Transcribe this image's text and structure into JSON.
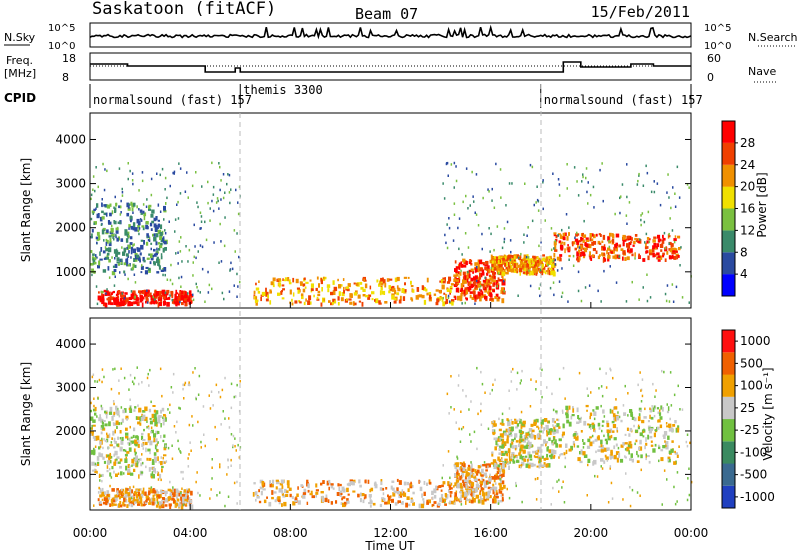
{
  "header": {
    "title": "Saskatoon (fitACF)",
    "beam": "Beam 07",
    "date": "15/Feb/2011"
  },
  "noise_panel": {
    "left_label": "N.Sky",
    "right_label": "N.Search",
    "left_ticks": [
      "10^5",
      "10^0"
    ],
    "right_ticks": [
      "10^5",
      "10^0"
    ]
  },
  "freq_panel": {
    "left_label_1": "Freq.",
    "left_label_2": "[MHz]",
    "right_label": "Nave",
    "left_ticks": [
      "18",
      "8"
    ],
    "right_ticks": [
      "60",
      "0"
    ]
  },
  "cpid": {
    "label": "CPID",
    "segments": [
      {
        "text": "normalsound (fast) 157",
        "start": 0,
        "end": 6
      },
      {
        "text": "themis 3300",
        "start": 6,
        "end": 18
      },
      {
        "text": "normalsound (fast) 157",
        "start": 18,
        "end": 24
      }
    ]
  },
  "time_axis": {
    "label": "Time UT",
    "ticks": [
      "00:00",
      "04:00",
      "08:00",
      "12:00",
      "16:00",
      "20:00",
      "00:00"
    ]
  },
  "power_panel": {
    "ylabel": "Slant Range [km]",
    "yticks": [
      "1000",
      "2000",
      "3000",
      "4000"
    ],
    "colorbar_label": "Power [dB]",
    "colorbar_ticks": [
      "4",
      "8",
      "12",
      "16",
      "20",
      "24",
      "28"
    ],
    "colors": [
      "#0000ff",
      "#2a4aa0",
      "#3a8a6a",
      "#7ac040",
      "#f0e000",
      "#f09000",
      "#f04000",
      "#ff0000"
    ]
  },
  "velocity_panel": {
    "ylabel": "Slant Range [km]",
    "yticks": [
      "1000",
      "2000",
      "3000",
      "4000"
    ],
    "colorbar_label": "Velocity [m s⁻¹]",
    "colorbar_ticks": [
      "1000",
      "500",
      "100",
      "25",
      "-25",
      "-100",
      "-500",
      "-1000"
    ],
    "colors": [
      "#2040c0",
      "#3a6a90",
      "#3a8a60",
      "#70c040",
      "#c8c8c8",
      "#f0a000",
      "#f06000",
      "#ff1010"
    ]
  },
  "chart_data": [
    {
      "type": "heatmap",
      "title": "",
      "xlabel": "Time UT",
      "ylabel": "Slant Range [km]",
      "x_range_hours": [
        0,
        24
      ],
      "ylim": [
        180,
        4600
      ],
      "quantity": "Power [dB]",
      "regions": [
        {
          "t": [
            0.3,
            4.0
          ],
          "r": [
            300,
            600
          ],
          "level": 7
        },
        {
          "t": [
            6.5,
            14.5
          ],
          "r": [
            300,
            900
          ],
          "level": 5
        },
        {
          "t": [
            14.5,
            16.5
          ],
          "r": [
            400,
            1300
          ],
          "level": 6
        },
        {
          "t": [
            16.0,
            18.5
          ],
          "r": [
            1000,
            1400
          ],
          "level": 5
        },
        {
          "t": [
            18.5,
            23.5
          ],
          "r": [
            1300,
            1900
          ],
          "level": 6
        },
        {
          "t": [
            0.0,
            3.0
          ],
          "r": [
            1000,
            2600
          ],
          "level": 2
        }
      ]
    },
    {
      "type": "heatmap",
      "title": "",
      "xlabel": "Time UT",
      "ylabel": "Slant Range [km]",
      "x_range_hours": [
        0,
        24
      ],
      "ylim": [
        180,
        4600
      ],
      "quantity": "Velocity [m s-1]",
      "regions": [
        {
          "t": [
            0.3,
            4.0
          ],
          "r": [
            300,
            700
          ],
          "level": 5
        },
        {
          "t": [
            6.5,
            14.5
          ],
          "r": [
            300,
            900
          ],
          "level": 5
        },
        {
          "t": [
            14.5,
            16.5
          ],
          "r": [
            400,
            1300
          ],
          "level": 5
        },
        {
          "t": [
            16.0,
            18.5
          ],
          "r": [
            1200,
            2300
          ],
          "level": 4
        },
        {
          "t": [
            18.5,
            23.5
          ],
          "r": [
            1300,
            2600
          ],
          "level": 4
        },
        {
          "t": [
            0.0,
            3.0
          ],
          "r": [
            1000,
            2600
          ],
          "level": 4
        }
      ]
    }
  ]
}
